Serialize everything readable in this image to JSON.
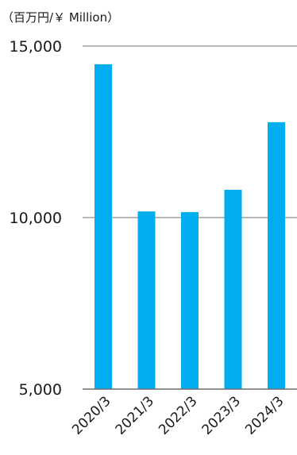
{
  "chart_data": {
    "type": "bar",
    "unit_label": "（百万円/￥ Million）",
    "categories": [
      "2020/3",
      "2021/3",
      "2022/3",
      "2023/3",
      "2024/3"
    ],
    "values": [
      14470,
      10180,
      10160,
      10810,
      12780
    ],
    "ylim": [
      5000,
      15000
    ],
    "yticks": [
      5000,
      10000,
      15000
    ],
    "ytick_labels": [
      "5,000",
      "10,000",
      "15,000"
    ],
    "bar_color": "#00aeef",
    "grid": true,
    "legend": "none"
  }
}
